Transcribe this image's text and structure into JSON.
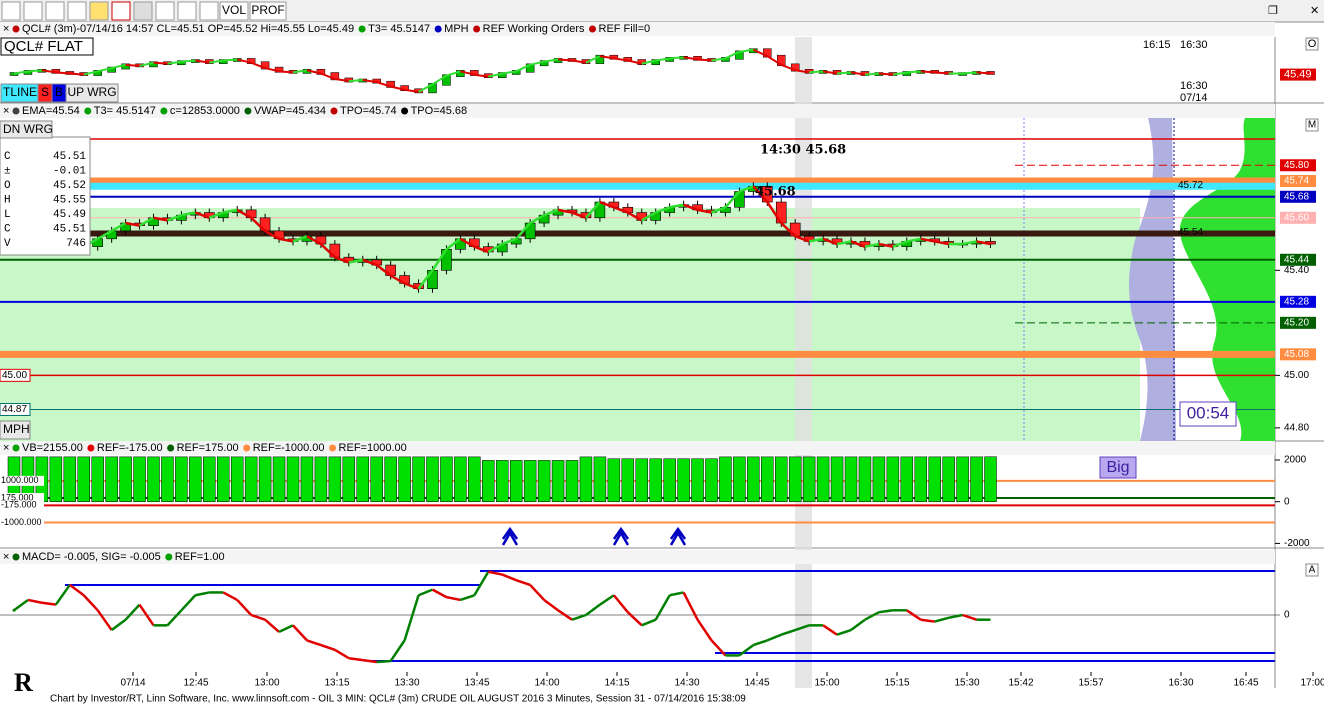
{
  "toolbar": {
    "buttons": [
      "VOL",
      "PROF"
    ]
  },
  "top_panel": {
    "header": [
      {
        "text": "QCL# (3m)-07/14/16 14:57 CL=45.51 OP=45.52 Hi=45.55 Lo=45.49",
        "color": "#c00000"
      },
      {
        "text": "T3= 45.5147",
        "color": "#00a000"
      },
      {
        "text": "MPH",
        "color": "#0000c0"
      },
      {
        "text": "REF Working Orders",
        "color": "#c00000"
      },
      {
        "text": "REF Fill=0",
        "color": "#c00000"
      }
    ],
    "status": "QCL# FLAT",
    "buttons": [
      "TLINE",
      "S",
      "B",
      "UP WRG"
    ],
    "time_labels": [
      "16:15",
      "16:30"
    ],
    "date_label": [
      "16:30",
      "07/14"
    ],
    "price_label": {
      "value": 45.49,
      "label": "45.49"
    },
    "corner": "O",
    "ylim": [
      45.2,
      45.8
    ]
  },
  "main_panel": {
    "header": [
      {
        "text": "EMA=45.54",
        "color": "#404040"
      },
      {
        "text": "T3= 45.5147",
        "color": "#00a000"
      },
      {
        "text": "c=12853.0000",
        "color": "#00a000"
      },
      {
        "text": "VWAP=45.434",
        "color": "#006000"
      },
      {
        "text": "TPO=45.74",
        "color": "#c00000"
      },
      {
        "text": "TPO=45.68",
        "color": "#000000"
      }
    ],
    "dn_wrg": "DN WRG",
    "mph": "MPH",
    "corner": "M",
    "data_window": [
      [
        "C",
        "45.51"
      ],
      [
        "±",
        "-0.01"
      ],
      [
        "O",
        "45.52"
      ],
      [
        "H",
        "45.55"
      ],
      [
        "L",
        "45.49"
      ],
      [
        "C",
        "45.51"
      ],
      [
        "V",
        "746"
      ]
    ],
    "closes": [
      45.5,
      45.52,
      45.53,
      45.51,
      45.5,
      45.49,
      45.52,
      45.55,
      45.58,
      45.57,
      45.6,
      45.59,
      45.61,
      45.62,
      45.6,
      45.62,
      45.63,
      45.6,
      45.55,
      45.52,
      45.51,
      45.53,
      45.5,
      45.45,
      45.43,
      45.44,
      45.42,
      45.38,
      45.35,
      45.33,
      45.4,
      45.48,
      45.52,
      45.49,
      45.47,
      45.5,
      45.52,
      45.58,
      45.61,
      45.63,
      45.62,
      45.6,
      45.66,
      45.64,
      45.62,
      45.59,
      45.62,
      45.64,
      45.65,
      45.63,
      45.62,
      45.64,
      45.7,
      45.72,
      45.66,
      45.58,
      45.53,
      45.51,
      45.52,
      45.5,
      45.51,
      45.49,
      45.5,
      45.49,
      45.51,
      45.52,
      45.51,
      45.5,
      45.5,
      45.51,
      45.5
    ],
    "ylim": [
      44.75,
      45.98
    ],
    "levels": [
      {
        "value": 45.9,
        "color": "#e00000",
        "width": 1.5,
        "style": "line"
      },
      {
        "value": 45.8,
        "label": "45.80",
        "color": "#e00000",
        "width": 1,
        "style": "dash"
      },
      {
        "value": 45.74,
        "label": "45.74",
        "color": "#ff8c40",
        "width": 7,
        "style": "box"
      },
      {
        "value": 45.72,
        "label": "45.72",
        "color": "#40e8ff",
        "width": 7,
        "style": "plain"
      },
      {
        "value": 45.68,
        "label": "45.68",
        "color": "#0000c0",
        "width": 2,
        "style": "box"
      },
      {
        "value": 45.6,
        "label": "45.60",
        "color": "#ffb0b0",
        "width": 1,
        "style": "box"
      },
      {
        "value": 45.54,
        "label": "45.54",
        "color": "#3a1a10",
        "width": 6,
        "style": "plain"
      },
      {
        "value": 45.44,
        "label": "45.44",
        "color": "#006000",
        "width": 2,
        "style": "box"
      },
      {
        "value": 45.28,
        "label": "45.28",
        "color": "#0000e0",
        "width": 2,
        "style": "box"
      },
      {
        "value": 45.2,
        "label": "45.20",
        "color": "#006000",
        "width": 1,
        "style": "dashbox"
      },
      {
        "value": 45.08,
        "label": "45.08",
        "color": "#ff8c40",
        "width": 7,
        "style": "box"
      },
      {
        "value": 45.0,
        "label": "45.00",
        "color": "#e00000",
        "width": 1.5,
        "style": "left"
      },
      {
        "value": 44.87,
        "label": "44.87",
        "color": "#007070",
        "width": 1,
        "style": "left"
      }
    ],
    "yticks": [
      {
        "value": 45.4,
        "label": "45.40"
      },
      {
        "value": 45.0,
        "label": "45.00"
      },
      {
        "value": 44.8,
        "label": "44.80"
      }
    ],
    "annotations": [
      "14:30  45.68",
      "45.68"
    ],
    "timer": "00:54"
  },
  "volume_panel": {
    "header": [
      {
        "text": "VB=2155.00",
        "color": "#00a000"
      },
      {
        "text": "REF=-175.00",
        "color": "#e00000"
      },
      {
        "text": "REF=175.00",
        "color": "#006000"
      },
      {
        "text": "REF=-1000.00",
        "color": "#ff8c40"
      },
      {
        "text": "REF=1000.00",
        "color": "#ff8c40"
      }
    ],
    "values": [
      2150,
      2150,
      2150,
      2150,
      2150,
      2150,
      2150,
      2150,
      2150,
      2150,
      2150,
      2150,
      2150,
      2150,
      2150,
      2150,
      2150,
      2150,
      2150,
      2150,
      2150,
      2150,
      2150,
      2150,
      2150,
      2150,
      2150,
      2150,
      2150,
      2150,
      2150,
      2150,
      2150,
      2150,
      1980,
      1980,
      1980,
      1980,
      1980,
      1980,
      1980,
      2150,
      2150,
      2060,
      2060,
      2060,
      2060,
      2060,
      2060,
      2060,
      2060,
      2150,
      2150,
      2150,
      2150,
      2150,
      2150,
      2150,
      2150,
      2150,
      2150,
      2150,
      2150,
      2150,
      2150,
      2150,
      2150,
      2150,
      2150,
      2150,
      2155
    ],
    "color": "#00e000",
    "ylim": [
      -2220,
      2240
    ],
    "yticks": [
      2000,
      0,
      -2000
    ],
    "refs": [
      {
        "value": 1000,
        "label": "1000.000",
        "color": "#ff8c40"
      },
      {
        "value": 175,
        "label": "175.000",
        "color": "#006000"
      },
      {
        "value": -175,
        "label": "-175.000",
        "color": "#e00000"
      },
      {
        "value": -1000,
        "label": "-1000.000",
        "color": "#ff8c40"
      }
    ],
    "annotation": "Big"
  },
  "macd_panel": {
    "header": [
      {
        "text": "MACD=  -0.005, SIG=  -0.005",
        "color": "#006000"
      },
      {
        "text": "REF=1.00",
        "color": "#00a000"
      }
    ],
    "values": [
      0.005,
      0.016,
      0.013,
      0.011,
      0.032,
      0.021,
      0.005,
      -0.016,
      -0.005,
      0.011,
      -0.011,
      -0.011,
      0.005,
      0.021,
      0.024,
      0.024,
      0.016,
      0,
      -0.005,
      -0.018,
      -0.011,
      -0.027,
      -0.032,
      -0.037,
      -0.046,
      -0.048,
      -0.05,
      -0.049,
      -0.027,
      0.021,
      0.027,
      0.019,
      0.016,
      0.021,
      0.046,
      0.043,
      0.037,
      0.032,
      0.016,
      0.005,
      -0.005,
      0,
      0.011,
      0.021,
      0.003,
      -0.011,
      -0.005,
      0.021,
      0.024,
      -0.005,
      -0.027,
      -0.043,
      -0.043,
      -0.032,
      -0.027,
      -0.021,
      -0.016,
      -0.011,
      -0.011,
      -0.021,
      -0.016,
      -0.005,
      0.003,
      0.005,
      0.005,
      -0.005,
      -0.007,
      -0.003,
      0,
      -0.005,
      -0.005
    ],
    "ylim": [
      -0.05,
      0.05
    ],
    "yticks": [
      0
    ],
    "corner": "A"
  },
  "time_axis": [
    "07/14",
    "12:45",
    "13:00",
    "13:15",
    "13:30",
    "13:45",
    "14:00",
    "14:15",
    "14:30",
    "14:45",
    "15:00",
    "15:15",
    "15:30",
    "15:42",
    "15:57",
    "16:30",
    "16:45",
    "17:00"
  ],
  "footer": "Chart by Investor/RT, Linn Software, Inc. www.linnsoft.com - OIL 3 MIN: QCL# (3m) CRUDE OIL AUGUST 2016 3 Minutes, Session 31 - 07/14/2016 15:38:09"
}
